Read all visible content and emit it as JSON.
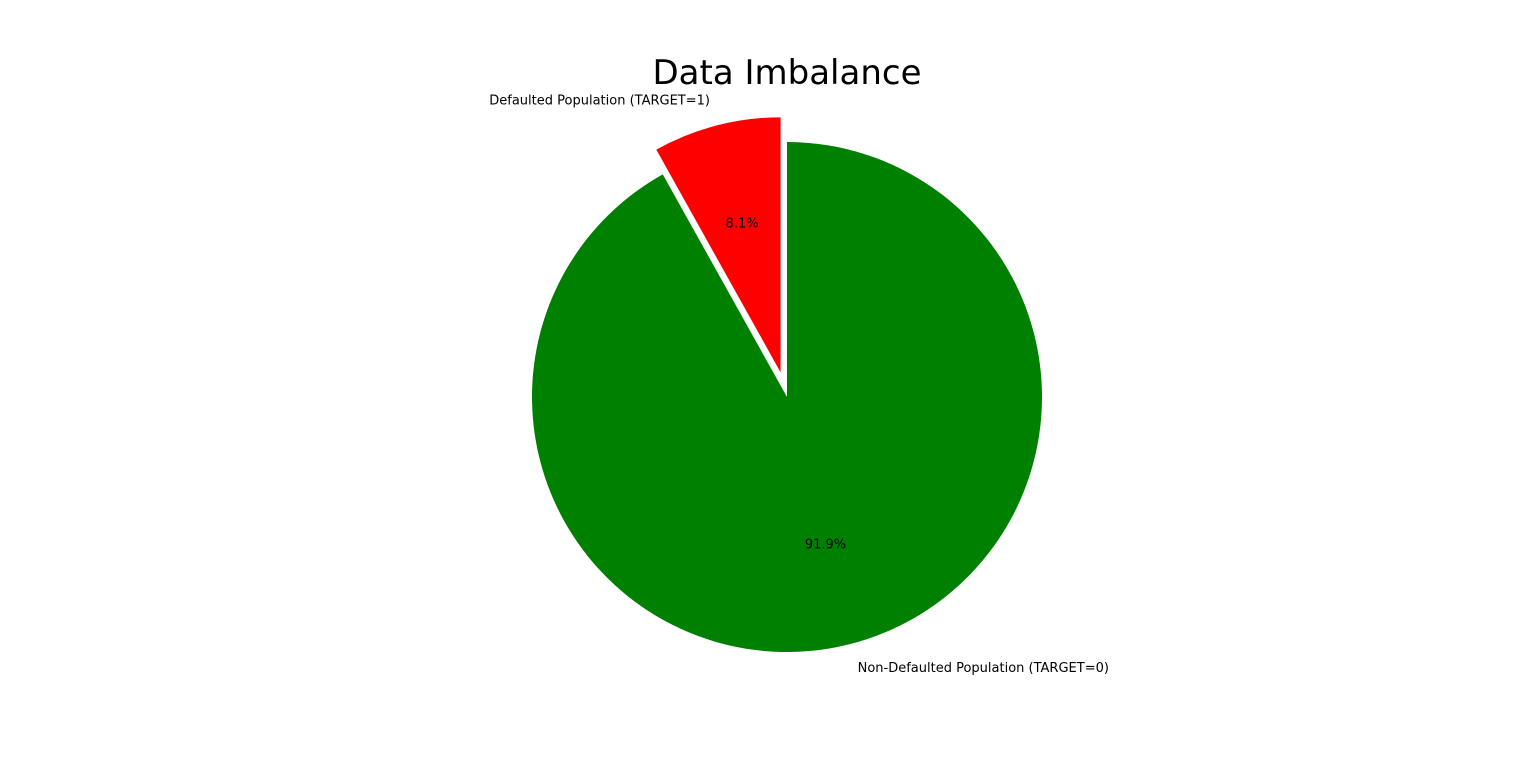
{
  "chart_data": {
    "type": "pie",
    "title": "Data Imbalance",
    "slices": [
      {
        "label": "Defaulted Population (TARGET=1)",
        "value": 8.1,
        "pct_label": "8.1%",
        "color": "#ff0000",
        "exploded": true
      },
      {
        "label": "Non-Defaulted Population (TARGET=0)",
        "value": 91.9,
        "pct_label": "91.9%",
        "color": "#008000",
        "exploded": false
      }
    ],
    "start_angle_deg": 90,
    "direction": "counterclockwise",
    "legend": "none"
  }
}
